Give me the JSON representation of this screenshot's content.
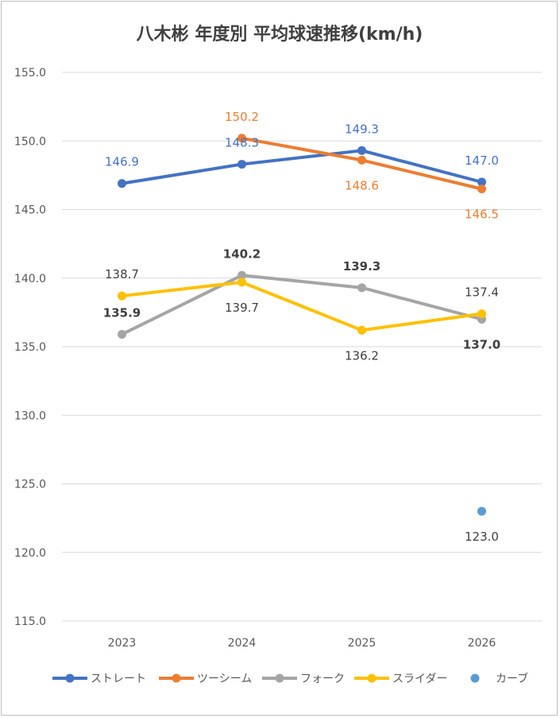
{
  "chart_data": {
    "type": "line",
    "title": "八木彬 年度別 平均球速推移(km/h)",
    "xlabel": "",
    "ylabel": "",
    "categories": [
      "2023",
      "2024",
      "2025",
      "2026"
    ],
    "ylim": [
      115.0,
      155.0
    ],
    "yticks": [
      "155.0",
      "150.0",
      "145.0",
      "140.0",
      "135.0",
      "130.0",
      "125.0",
      "120.0",
      "115.0"
    ],
    "ytick_values": [
      155,
      150,
      145,
      140,
      135,
      130,
      125,
      120,
      115
    ],
    "grid": true,
    "legend_position": "bottom",
    "series": [
      {
        "name": "ストレート",
        "color": "#4472C4",
        "values": [
          146.9,
          148.3,
          149.3,
          147.0
        ],
        "labels": [
          "146.9",
          "148.3",
          "149.3",
          "147.0"
        ],
        "label_pos": [
          "above",
          "above",
          "above",
          "above"
        ],
        "label_bold": false
      },
      {
        "name": "ツーシーム",
        "color": "#ED7D31",
        "values": [
          null,
          150.2,
          148.6,
          146.5
        ],
        "labels": [
          null,
          "150.2",
          "148.6",
          "146.5"
        ],
        "label_pos": [
          null,
          "above",
          "below",
          "below"
        ],
        "label_bold": false
      },
      {
        "name": "フォーク",
        "color": "#A5A5A5",
        "label_color": "#404040",
        "values": [
          135.9,
          140.2,
          139.3,
          137.0
        ],
        "labels": [
          "135.9",
          "140.2",
          "139.3",
          "137.0"
        ],
        "label_pos": [
          "above",
          "above",
          "above",
          "below"
        ],
        "label_bold": true
      },
      {
        "name": "スライダー",
        "color": "#FFC000",
        "label_color": "#404040",
        "values": [
          138.7,
          139.7,
          136.2,
          137.4
        ],
        "labels": [
          "138.7",
          "139.7",
          "136.2",
          "137.4"
        ],
        "label_pos": [
          "above",
          "below",
          "below",
          "above"
        ],
        "label_bold": false
      },
      {
        "name": "カーブ",
        "color": "#5B9BD5",
        "label_color": "#404040",
        "values": [
          null,
          null,
          null,
          123.0
        ],
        "labels": [
          null,
          null,
          null,
          "123.0"
        ],
        "label_pos": [
          null,
          null,
          null,
          "below"
        ],
        "label_bold": false
      }
    ]
  }
}
